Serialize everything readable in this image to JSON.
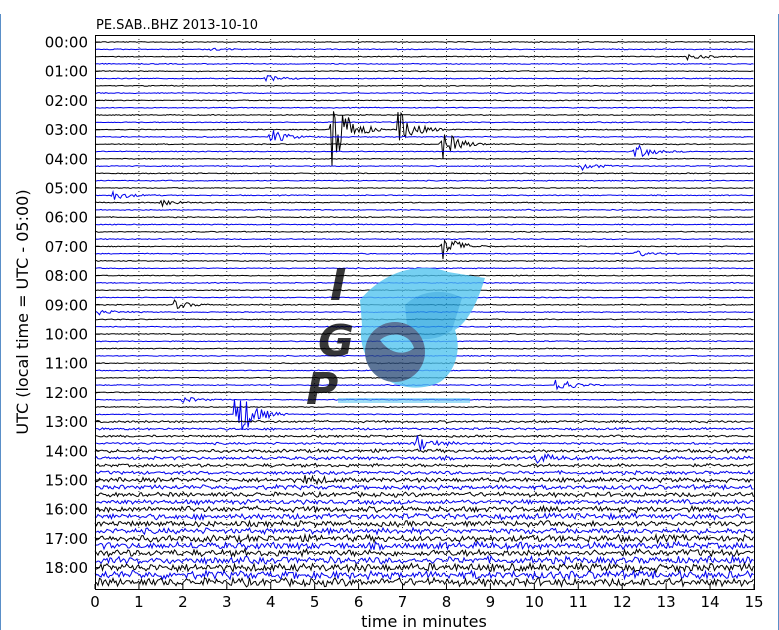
{
  "chart_data": {
    "type": "line",
    "title": "PE.SAB..BHZ 2013-10-10",
    "xlabel": "time in minutes",
    "ylabel": "UTC (local time = UTC - 05:00)",
    "xlim": [
      0,
      15
    ],
    "x_ticks": [
      "0",
      "1",
      "2",
      "3",
      "4",
      "5",
      "6",
      "7",
      "8",
      "9",
      "10",
      "11",
      "12",
      "13",
      "14",
      "15"
    ],
    "y_ticks": [
      "00:00",
      "01:00",
      "02:00",
      "03:00",
      "04:00",
      "05:00",
      "06:00",
      "07:00",
      "08:00",
      "09:00",
      "10:00",
      "11:00",
      "12:00",
      "13:00",
      "14:00",
      "15:00",
      "16:00",
      "17:00",
      "18:00"
    ],
    "traces_per_hour": 4,
    "trace_minutes": 15,
    "trace_colors": [
      "#000000",
      "#0000ee"
    ],
    "grid": true,
    "events": [
      {
        "trace": 1,
        "minute": 2.5,
        "amplitude": 0.3
      },
      {
        "trace": 2,
        "minute": 13.5,
        "amplitude": 0.6
      },
      {
        "trace": 5,
        "minute": 3.9,
        "amplitude": 0.5
      },
      {
        "trace": 12,
        "minute": 5.4,
        "amplitude": 6.5
      },
      {
        "trace": 13,
        "minute": 4.0,
        "amplitude": 1.2
      },
      {
        "trace": 12,
        "minute": 6.9,
        "amplitude": 3.0
      },
      {
        "trace": 14,
        "minute": 7.9,
        "amplitude": 2.5
      },
      {
        "trace": 15,
        "minute": 12.3,
        "amplitude": 1.2
      },
      {
        "trace": 17,
        "minute": 11.1,
        "amplitude": 0.6
      },
      {
        "trace": 21,
        "minute": 0.4,
        "amplitude": 0.8
      },
      {
        "trace": 22,
        "minute": 1.5,
        "amplitude": 0.6
      },
      {
        "trace": 28,
        "minute": 7.9,
        "amplitude": 2.2
      },
      {
        "trace": 29,
        "minute": 12.3,
        "amplitude": 0.5
      },
      {
        "trace": 36,
        "minute": 1.8,
        "amplitude": 0.7
      },
      {
        "trace": 37,
        "minute": 0.1,
        "amplitude": 0.4
      },
      {
        "trace": 40,
        "minute": 15.0,
        "amplitude": 0.7
      },
      {
        "trace": 47,
        "minute": 10.5,
        "amplitude": 1.3
      },
      {
        "trace": 49,
        "minute": 2.0,
        "amplitude": 0.5
      },
      {
        "trace": 51,
        "minute": 3.2,
        "amplitude": 5.0
      },
      {
        "trace": 55,
        "minute": 7.3,
        "amplitude": 1.5
      },
      {
        "trace": 57,
        "minute": 10.0,
        "amplitude": 0.8
      },
      {
        "trace": 60,
        "minute": 4.8,
        "amplitude": 0.8
      }
    ]
  },
  "watermark": {
    "text": "IGP",
    "brand_color": "#3a5f8f",
    "accent_color": "#4fc3ef"
  }
}
